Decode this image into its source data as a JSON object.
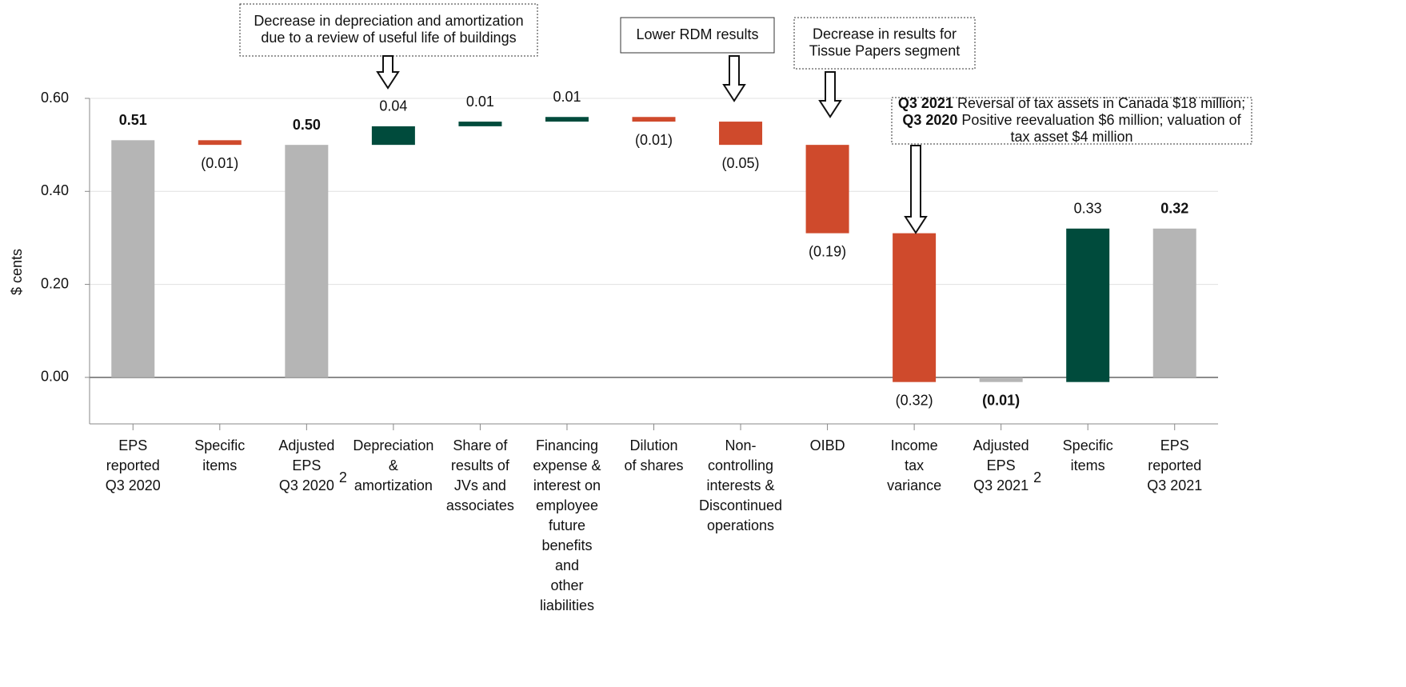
{
  "chart_data": {
    "type": "waterfall",
    "y_label": "$ cents",
    "categories": [
      [
        "EPS",
        "reported",
        "Q3 2020"
      ],
      [
        "Specific",
        "items"
      ],
      [
        "Adjusted",
        "EPS",
        "Q3 2020"
      ],
      [
        "Depreciation",
        "&",
        "amortization"
      ],
      [
        "Share of",
        "results of",
        "JVs and",
        "associates"
      ],
      [
        "Financing",
        "expense &",
        "interest on",
        "employee",
        "future",
        "benefits",
        "and",
        "other",
        "liabilities"
      ],
      [
        "Dilution",
        "of shares"
      ],
      [
        "Non-",
        "controlling",
        "interests &",
        "Discontinued",
        "operations"
      ],
      [
        "OIBD"
      ],
      [
        "Income",
        "tax",
        "variance"
      ],
      [
        "Adjusted",
        "EPS",
        "Q3 2021"
      ],
      [
        "Specific",
        "items"
      ],
      [
        "EPS",
        "reported",
        "Q3 2021"
      ]
    ],
    "category_superscripts": [
      null,
      null,
      "2",
      null,
      null,
      null,
      null,
      null,
      null,
      null,
      "2",
      null,
      null
    ],
    "kinds": [
      "total",
      "delta",
      "total",
      "delta",
      "delta",
      "delta",
      "delta",
      "delta",
      "delta",
      "delta",
      "total",
      "delta",
      "total"
    ],
    "values": [
      0.51,
      -0.01,
      0.5,
      0.04,
      0.01,
      0.01,
      -0.01,
      -0.05,
      -0.19,
      -0.32,
      -0.01,
      0.33,
      0.32
    ],
    "value_labels": [
      "0.51",
      "(0.01)",
      "0.50",
      "0.04",
      "0.01",
      "0.01",
      "(0.01)",
      "(0.05)",
      "(0.19)",
      "(0.32)",
      "(0.01)",
      "0.33",
      "0.32"
    ],
    "colors": {
      "total": "#b5b5b5",
      "increase": "#004b3c",
      "decrease": "#cf4a2c"
    },
    "ylim": [
      -0.1,
      0.6
    ],
    "yticks": [
      {
        "value": 0,
        "label": "0.00"
      },
      {
        "value": 0.2,
        "label": "0.20"
      },
      {
        "value": 0.4,
        "label": "0.40"
      },
      {
        "value": 0.6,
        "label": "0.60"
      }
    ],
    "grid": true,
    "annotations": [
      [
        [
          {
            "text": "Decrease in depreciation and amortization"
          }
        ],
        [
          {
            "text": "due to a review of useful life of buildings"
          }
        ]
      ],
      [
        [
          {
            "text": "Lower RDM results"
          }
        ]
      ],
      [
        [
          {
            "text": "Decrease in results for"
          }
        ],
        [
          {
            "text": "Tissue Papers segment"
          }
        ]
      ],
      [
        [
          {
            "text": "Q3 2021",
            "bold": true
          },
          {
            "text": " Reversal of tax assets in Canada $18 million;"
          }
        ],
        [
          {
            "text": "Q3 2020",
            "bold": true
          },
          {
            "text": " Positive reevaluation $6 million; valuation of"
          }
        ],
        [
          {
            "text": "tax asset $4 million"
          }
        ]
      ]
    ]
  }
}
